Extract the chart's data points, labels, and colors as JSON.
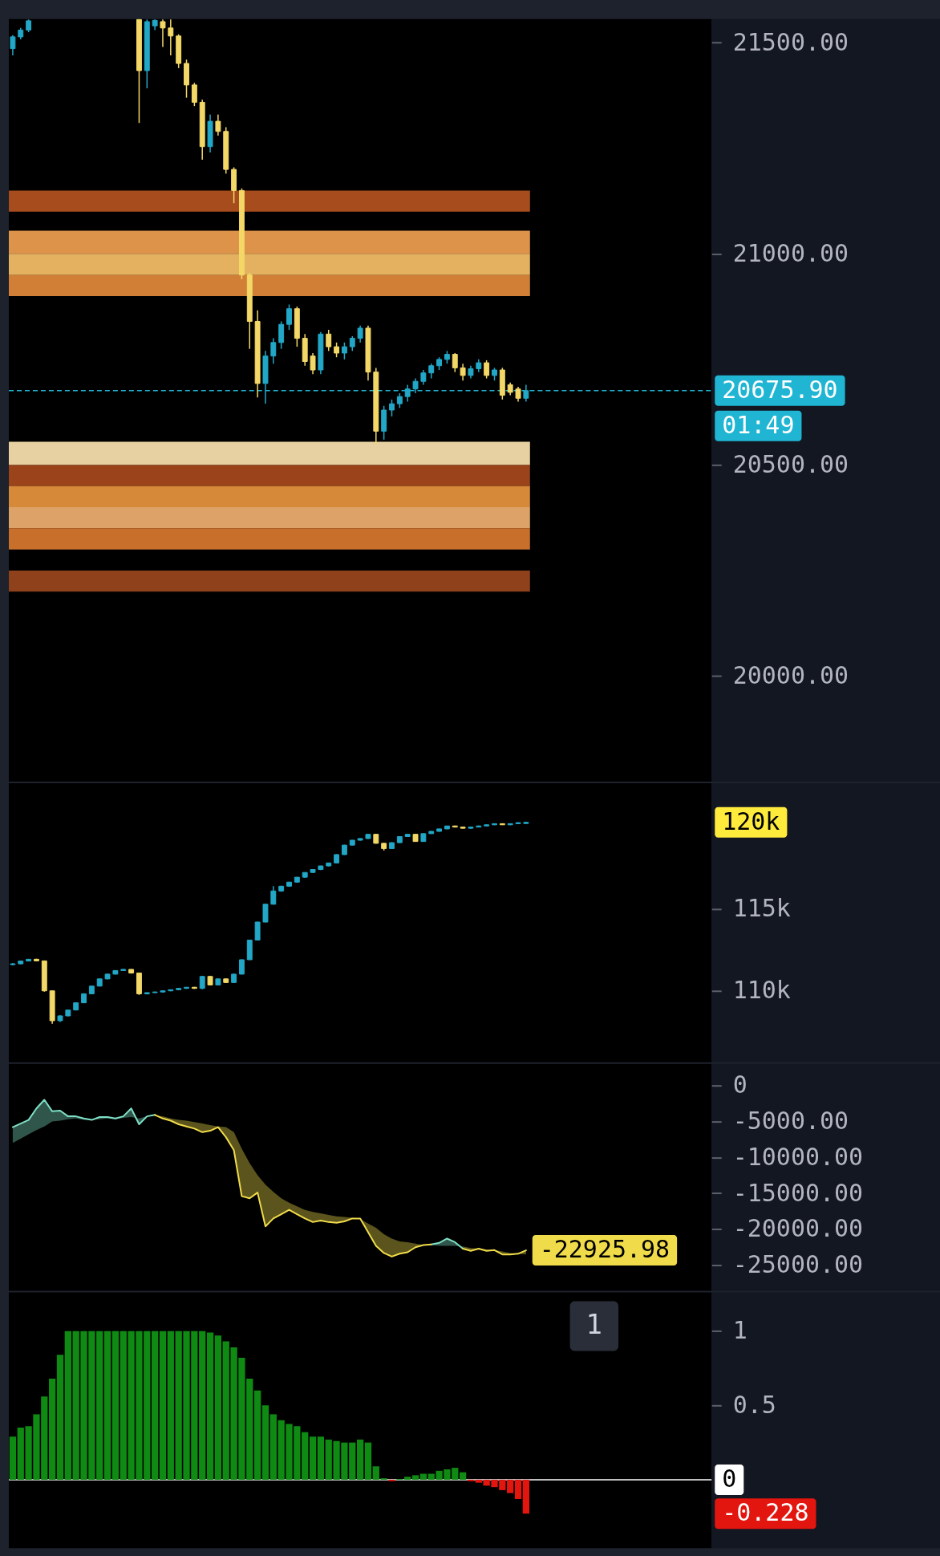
{
  "chart_data": [
    {
      "type": "candlestick",
      "categories": [
        null,
        null,
        null,
        null,
        null,
        null,
        null,
        null,
        null,
        null,
        null,
        null,
        null,
        null,
        null,
        null,
        null,
        null,
        null,
        null,
        null,
        null,
        null,
        null,
        null,
        null,
        null,
        null,
        null,
        null,
        null,
        null,
        null,
        null,
        null,
        null,
        null,
        null,
        null,
        null,
        null,
        null,
        null,
        null,
        null,
        null,
        null,
        null,
        null,
        null,
        null,
        null,
        null,
        null,
        null,
        null,
        null,
        null,
        null,
        null,
        null,
        null,
        null,
        null,
        null,
        null,
        null,
        null,
        null,
        null,
        null,
        null,
        null,
        null,
        null,
        null,
        null,
        null,
        null,
        null,
        null,
        null,
        null,
        null,
        null,
        null,
        null,
        null,
        null
      ],
      "ohlc": [
        [
          21486,
          21518,
          21470,
          21514
        ],
        [
          21514,
          21535,
          21508,
          21530
        ],
        [
          21530,
          21555,
          21525,
          21552
        ],
        null,
        null,
        null,
        null,
        null,
        null,
        null,
        null,
        null,
        null,
        null,
        null,
        null,
        [
          21555,
          21555,
          21310,
          21434
        ],
        [
          21434,
          21555,
          21392,
          21550
        ],
        [
          21540,
          21555,
          21530,
          21553
        ],
        [
          21550,
          21555,
          21490,
          21535
        ],
        [
          21535,
          21555,
          21470,
          21516
        ],
        [
          21516,
          21520,
          21440,
          21451
        ],
        [
          21451,
          21460,
          21370,
          21400
        ],
        [
          21400,
          21405,
          21350,
          21359
        ],
        [
          21359,
          21365,
          21223,
          21254
        ],
        [
          21254,
          21330,
          21240,
          21314
        ],
        [
          21314,
          21330,
          21280,
          21290
        ],
        [
          21290,
          21300,
          21190,
          21200
        ],
        [
          21200,
          21205,
          21120,
          21150
        ],
        [
          21150,
          21155,
          20940,
          20950
        ],
        [
          20950,
          20955,
          20775,
          20840
        ],
        [
          20840,
          20866,
          20660,
          20693
        ],
        [
          20693,
          20770,
          20645,
          20758
        ],
        [
          20758,
          20800,
          20740,
          20790
        ],
        [
          20790,
          20840,
          20775,
          20833
        ],
        [
          20833,
          20880,
          20820,
          20870
        ],
        [
          20870,
          20875,
          20780,
          20800
        ],
        [
          20800,
          20810,
          20735,
          20745
        ],
        [
          20758,
          20765,
          20715,
          20725
        ],
        [
          20725,
          20815,
          20715,
          20810
        ],
        [
          20810,
          20820,
          20770,
          20780
        ],
        [
          20780,
          20790,
          20755,
          20765
        ],
        [
          20765,
          20790,
          20750,
          20780
        ],
        [
          20780,
          20805,
          20770,
          20800
        ],
        [
          20800,
          20830,
          20790,
          20824
        ],
        [
          20824,
          20830,
          20700,
          20720
        ],
        [
          20720,
          20730,
          20550,
          20580
        ],
        [
          20580,
          20640,
          20560,
          20630
        ],
        [
          20630,
          20655,
          20615,
          20645
        ],
        [
          20645,
          20670,
          20635,
          20662
        ],
        [
          20662,
          20690,
          20650,
          20680
        ],
        [
          20680,
          20705,
          20670,
          20698
        ],
        [
          20698,
          20725,
          20690,
          20718
        ],
        [
          20718,
          20740,
          20705,
          20735
        ],
        [
          20735,
          20755,
          20725,
          20750
        ],
        [
          20750,
          20770,
          20740,
          20762
        ],
        [
          20762,
          20765,
          20720,
          20730
        ],
        [
          20730,
          20740,
          20700,
          20712
        ],
        [
          20712,
          20735,
          20705,
          20728
        ],
        [
          20728,
          20750,
          20720,
          20742
        ],
        [
          20742,
          20748,
          20705,
          20712
        ],
        [
          20712,
          20730,
          20700,
          20725
        ],
        [
          20725,
          20730,
          20655,
          20665
        ],
        [
          20690,
          20695,
          20665,
          20672
        ],
        [
          20680,
          20685,
          20650,
          20658
        ],
        [
          20658,
          20690,
          20650,
          20675.9
        ],
        null,
        null,
        null,
        null,
        null,
        null,
        null,
        null,
        null,
        null,
        null,
        null,
        null,
        null,
        null,
        null,
        null,
        null,
        null,
        null,
        null,
        null,
        null
      ],
      "colors": [
        "#22a7c7",
        "#22a7c7",
        "#22a7c7",
        null,
        null,
        null,
        null,
        null,
        null,
        null,
        null,
        null,
        null,
        null,
        null,
        null,
        "#f3d867",
        "#22a7c7",
        "#22a7c7",
        "#f3d867",
        "#f3d867",
        "#f3d867",
        "#f3d867",
        "#f3d867",
        "#f3d867",
        "#22a7c7",
        "#f3d867",
        "#f3d867",
        "#f3d867",
        "#f3d867",
        "#f3d867",
        "#f3d867",
        "#22a7c7",
        "#22a7c7",
        "#22a7c7",
        "#22a7c7",
        "#f3d867",
        "#f3d867",
        "#f3d867",
        "#22a7c7",
        "#f3d867",
        "#f3d867",
        "#22a7c7",
        "#22a7c7",
        "#22a7c7",
        "#f3d867",
        "#f3d867",
        "#22a7c7",
        "#22a7c7",
        "#22a7c7",
        "#22a7c7",
        "#22a7c7",
        "#22a7c7",
        "#22a7c7",
        "#22a7c7",
        "#22a7c7",
        "#f3d867",
        "#f3d867",
        "#22a7c7",
        "#22a7c7",
        "#f3d867",
        "#22a7c7",
        "#f3d867",
        "#f3d867",
        "#f3d867",
        "#22a7c7",
        null,
        null,
        null,
        null,
        null,
        null,
        null,
        null,
        null,
        null,
        null,
        null,
        null,
        null,
        null,
        null,
        null,
        null,
        null,
        null,
        null,
        null,
        null
      ],
      "ylim": [
        19750,
        21556
      ],
      "yticks": [
        {
          "value": 21500,
          "label": "21500.00"
        },
        {
          "value": 21000,
          "label": "21000.00"
        },
        {
          "value": 20500,
          "label": "20500.00"
        },
        {
          "value": 20000,
          "label": "20000.00"
        }
      ],
      "bands": [
        {
          "axis": "y",
          "from": 21100,
          "to": 21150,
          "color": "#b5531f"
        },
        {
          "axis": "y",
          "from": 21000,
          "to": 21055,
          "color": "#f0a050"
        },
        {
          "axis": "y",
          "from": 20950,
          "to": 21000,
          "color": "#f6c068"
        },
        {
          "axis": "y",
          "from": 20900,
          "to": 20950,
          "color": "#e38a3c"
        },
        {
          "axis": "y",
          "from": 20500,
          "to": 20555,
          "color": "#fbe3b0"
        },
        {
          "axis": "y",
          "from": 20450,
          "to": 20500,
          "color": "#a84a1e"
        },
        {
          "axis": "y",
          "from": 20400,
          "to": 20450,
          "color": "#e9953f"
        },
        {
          "axis": "y",
          "from": 20350,
          "to": 20400,
          "color": "#f0b070"
        },
        {
          "axis": "y",
          "from": 20300,
          "to": 20350,
          "color": "#d9782f"
        },
        {
          "axis": "y",
          "from": 20200,
          "to": 20250,
          "color": "#9a461c"
        }
      ],
      "ref_lines": [
        {
          "axis": "y",
          "value": 20675.9,
          "label": "20675.90",
          "color": "#1fb5d3",
          "line_style": "dashed"
        }
      ],
      "annotations": [
        "01:49"
      ]
    },
    {
      "type": "candlestick",
      "categories": [
        null,
        null,
        null,
        null,
        null,
        null,
        null,
        null,
        null,
        null,
        null,
        null,
        null,
        null,
        null,
        null,
        null,
        null,
        null,
        null,
        null,
        null,
        null,
        null,
        null,
        null,
        null,
        null,
        null,
        null,
        null,
        null,
        null,
        null,
        null,
        null,
        null,
        null,
        null,
        null,
        null,
        null,
        null,
        null,
        null,
        null,
        null,
        null,
        null,
        null,
        null,
        null,
        null,
        null,
        null,
        null,
        null,
        null,
        null,
        null,
        null,
        null,
        null,
        null,
        null,
        null,
        null,
        null,
        null,
        null,
        null,
        null,
        null,
        null,
        null,
        null,
        null,
        null,
        null,
        null,
        null,
        null,
        null,
        null,
        null,
        null,
        null,
        null,
        null
      ],
      "ohlc": [
        [
          111600,
          111700,
          111550,
          111650
        ],
        [
          111650,
          111850,
          111620,
          111820
        ],
        [
          111820,
          111950,
          111800,
          111930
        ],
        [
          111930,
          111960,
          111800,
          111830
        ],
        [
          111830,
          111850,
          109950,
          110000
        ],
        [
          110000,
          110020,
          107990,
          108175
        ],
        [
          108175,
          108500,
          108100,
          108470
        ],
        [
          108470,
          108850,
          108440,
          108830
        ],
        [
          108830,
          109300,
          108800,
          109270
        ],
        [
          109270,
          109850,
          109250,
          109820
        ],
        [
          109820,
          110300,
          109800,
          110290
        ],
        [
          110290,
          110750,
          110270,
          110730
        ],
        [
          110730,
          111050,
          110700,
          111020
        ],
        [
          111020,
          111260,
          111000,
          111240
        ],
        [
          111240,
          111330,
          111220,
          111310
        ],
        [
          111310,
          111330,
          111050,
          111090
        ],
        [
          111090,
          111100,
          109750,
          109820
        ],
        [
          109820,
          109900,
          109780,
          109890
        ],
        [
          109890,
          109950,
          109860,
          109930
        ],
        [
          109930,
          110020,
          109900,
          110000
        ],
        [
          110000,
          110090,
          109970,
          110070
        ],
        [
          110070,
          110160,
          110040,
          110150
        ],
        [
          110150,
          110230,
          110120,
          110220
        ],
        [
          110220,
          110240,
          110120,
          110150
        ],
        [
          110150,
          110900,
          110100,
          110880
        ],
        [
          110880,
          110900,
          110330,
          110360
        ],
        [
          110360,
          110750,
          110340,
          110730
        ],
        [
          110730,
          110760,
          110480,
          110510
        ],
        [
          110510,
          111050,
          110490,
          111020
        ],
        [
          111020,
          111920,
          111000,
          111900
        ],
        [
          111900,
          113120,
          111880,
          113100
        ],
        [
          113100,
          114220,
          113080,
          114200
        ],
        [
          114200,
          115320,
          114180,
          115290
        ],
        [
          115290,
          116400,
          115270,
          116100
        ],
        [
          116100,
          116420,
          116050,
          116390
        ],
        [
          116390,
          116660,
          116350,
          116640
        ],
        [
          116640,
          116950,
          116600,
          116940
        ],
        [
          116940,
          117240,
          116900,
          117230
        ],
        [
          117230,
          117420,
          117200,
          117410
        ],
        [
          117410,
          117640,
          117380,
          117630
        ],
        [
          117630,
          117830,
          117600,
          117810
        ],
        [
          117810,
          118340,
          117790,
          118320
        ],
        [
          118320,
          118920,
          118300,
          118900
        ],
        [
          118900,
          119210,
          118880,
          119200
        ],
        [
          119200,
          119320,
          119180,
          119300
        ],
        [
          119300,
          119580,
          119280,
          119560
        ],
        [
          119560,
          119580,
          118990,
          119010
        ],
        [
          119010,
          119030,
          118570,
          118690
        ],
        [
          118690,
          119070,
          118670,
          119050
        ],
        [
          119050,
          119430,
          119030,
          119420
        ],
        [
          119420,
          119580,
          119400,
          119560
        ],
        [
          119560,
          119580,
          119100,
          119120
        ],
        [
          119120,
          119620,
          119100,
          119600
        ],
        [
          119600,
          119760,
          119580,
          119740
        ],
        [
          119740,
          119900,
          119720,
          119890
        ],
        [
          119890,
          120080,
          119870,
          120070
        ],
        [
          120070,
          120090,
          119980,
          120000
        ],
        [
          120000,
          120020,
          119910,
          119930
        ],
        [
          119930,
          120010,
          119900,
          120000
        ],
        [
          120000,
          120090,
          119980,
          120070
        ],
        [
          120070,
          120160,
          120050,
          120140
        ],
        [
          120140,
          120230,
          120120,
          120210
        ],
        [
          120210,
          120230,
          120130,
          120140
        ],
        [
          120140,
          120230,
          120120,
          120210
        ],
        [
          120210,
          120290,
          120190,
          120270
        ],
        [
          120220,
          120310,
          120200,
          120290
        ],
        null,
        null,
        null,
        null,
        null,
        null,
        null,
        null,
        null,
        null,
        null,
        null,
        null,
        null,
        null,
        null,
        null,
        null,
        null,
        null,
        null,
        null,
        null
      ],
      "colors": [
        "#22a7c7",
        "#22a7c7",
        "#22a7c7",
        "#f3d867",
        "#f3d867",
        "#f3d867",
        "#22a7c7",
        "#22a7c7",
        "#22a7c7",
        "#22a7c7",
        "#22a7c7",
        "#22a7c7",
        "#22a7c7",
        "#22a7c7",
        "#22a7c7",
        "#f3d867",
        "#f3d867",
        "#22a7c7",
        "#22a7c7",
        "#22a7c7",
        "#22a7c7",
        "#22a7c7",
        "#22a7c7",
        "#f3d867",
        "#22a7c7",
        "#f3d867",
        "#22a7c7",
        "#f3d867",
        "#22a7c7",
        "#22a7c7",
        "#22a7c7",
        "#22a7c7",
        "#22a7c7",
        "#22a7c7",
        "#22a7c7",
        "#22a7c7",
        "#22a7c7",
        "#22a7c7",
        "#22a7c7",
        "#22a7c7",
        "#22a7c7",
        "#22a7c7",
        "#22a7c7",
        "#22a7c7",
        "#22a7c7",
        "#22a7c7",
        "#f3d867",
        "#f3d867",
        "#22a7c7",
        "#22a7c7",
        "#22a7c7",
        "#f3d867",
        "#22a7c7",
        "#22a7c7",
        "#22a7c7",
        "#22a7c7",
        "#f3d867",
        "#f3d867",
        "#22a7c7",
        "#22a7c7",
        "#22a7c7",
        "#22a7c7",
        "#f3d867",
        "#22a7c7",
        "#22a7c7",
        "#22a7c7",
        null,
        null,
        null,
        null,
        null,
        null,
        null,
        null,
        null,
        null,
        null,
        null,
        null,
        null,
        null,
        null,
        null,
        null,
        null,
        null,
        null,
        null,
        null
      ],
      "ylim": [
        105640,
        122680
      ],
      "yticks": [
        {
          "value": 110000,
          "label": "110k"
        },
        {
          "value": 115000,
          "label": "115k"
        }
      ],
      "annotations": [
        "120k"
      ]
    },
    {
      "type": "line",
      "categories": [
        null,
        null,
        null,
        null,
        null,
        null,
        null,
        null,
        null,
        null,
        null,
        null,
        null,
        null,
        null,
        null,
        null,
        null,
        null,
        null,
        null,
        null,
        null,
        null,
        null,
        null,
        null,
        null,
        null,
        null,
        null,
        null,
        null,
        null,
        null,
        null,
        null,
        null,
        null,
        null,
        null,
        null,
        null,
        null,
        null,
        null,
        null,
        null,
        null,
        null,
        null,
        null,
        null,
        null,
        null,
        null,
        null,
        null,
        null,
        null,
        null,
        null,
        null,
        null,
        null,
        null,
        null,
        null,
        null,
        null,
        null,
        null,
        null,
        null,
        null,
        null,
        null,
        null,
        null,
        null,
        null,
        null,
        null,
        null,
        null,
        null,
        null,
        null,
        null
      ],
      "series": [
        {
          "color": "#7ee0c6",
          "values": [
            -5800,
            -5300,
            -4800,
            -3200,
            -2000,
            -3600,
            -3500,
            -4300,
            -4300,
            -4600,
            -4800,
            -4400,
            -4400,
            -4600,
            -4300,
            -3200,
            -5400,
            -4300,
            -4100,
            null,
            null,
            null,
            null,
            null,
            null,
            null,
            null,
            null,
            null,
            null,
            null,
            null,
            null,
            null,
            null,
            null,
            null,
            null,
            null,
            null,
            null,
            null,
            null,
            null,
            null,
            null,
            null,
            null,
            null,
            null,
            null,
            null,
            null,
            -22100,
            -21900,
            -21300,
            -21800,
            -22700,
            null,
            null,
            null,
            null,
            null,
            null,
            null,
            null,
            null,
            null,
            null,
            null,
            null,
            null,
            null,
            null,
            null,
            null,
            null,
            null,
            null,
            null,
            null,
            null,
            null,
            null,
            null,
            null,
            null,
            null,
            null
          ],
          "lower": [
            -8000,
            -7400,
            -6800,
            -6200,
            -5700,
            -5000,
            -4900,
            -4700,
            -4600,
            -4800,
            -4800,
            -4700,
            -4600,
            -4700,
            -4500,
            -4400,
            -4600,
            -4300,
            -4200,
            null,
            null,
            null,
            null,
            null,
            null,
            null,
            null,
            null,
            null,
            null,
            null,
            null,
            null,
            null,
            null,
            null,
            null,
            null,
            null,
            null,
            null,
            null,
            null,
            null,
            null,
            null,
            null,
            null,
            null,
            null,
            null,
            null,
            null,
            -22200,
            -22300,
            -22300,
            -22300,
            -22400,
            null,
            null,
            null,
            null,
            null,
            null,
            null,
            null,
            null,
            null,
            null,
            null,
            null,
            null,
            null,
            null,
            null,
            null,
            null,
            null,
            null,
            null,
            null,
            null,
            null,
            null,
            null,
            null,
            null,
            null,
            null
          ],
          "upper": [
            -5800,
            -5300,
            -4800,
            -3200,
            -2000,
            -3600,
            -3500,
            -4300,
            -4300,
            -4600,
            -4800,
            -4400,
            -4400,
            -4600,
            -4300,
            -3200,
            -5400,
            -4300,
            -4100,
            null,
            null,
            null,
            null,
            null,
            null,
            null,
            null,
            null,
            null,
            null,
            null,
            null,
            null,
            null,
            null,
            null,
            null,
            null,
            null,
            null,
            null,
            null,
            null,
            null,
            null,
            null,
            null,
            null,
            null,
            null,
            null,
            null,
            null,
            -22100,
            -21900,
            -21300,
            -21800,
            -22700,
            null,
            null,
            null,
            null,
            null,
            null,
            null,
            null,
            null,
            null,
            null,
            null,
            null,
            null,
            null,
            null,
            null,
            null,
            null,
            null,
            null,
            null,
            null,
            null,
            null,
            null,
            null,
            null,
            null,
            null,
            null
          ]
        },
        {
          "color": "#f0dc4a",
          "values": [
            null,
            null,
            null,
            null,
            null,
            null,
            null,
            null,
            null,
            null,
            null,
            null,
            null,
            null,
            null,
            null,
            null,
            null,
            -4100,
            -4600,
            -4900,
            -5400,
            -5700,
            -6000,
            -6500,
            -6300,
            -5800,
            -7200,
            -9000,
            -15400,
            -15700,
            -14900,
            -19600,
            -18500,
            -17900,
            -17300,
            -17900,
            -18500,
            -19000,
            -18800,
            -19000,
            -19100,
            -18900,
            -18500,
            -18500,
            -20400,
            -22300,
            -23300,
            -23800,
            -23400,
            -23200,
            -22500,
            -22200,
            -22100,
            null,
            null,
            null,
            -22700,
            -23000,
            -22700,
            -23000,
            -22900,
            -23500,
            -23500,
            -23400,
            -22925.98,
            null,
            null,
            null,
            null,
            null,
            null,
            null,
            null,
            null,
            null,
            null,
            null,
            null,
            null,
            null,
            null,
            null,
            null,
            null,
            null,
            null,
            null,
            null
          ],
          "lower": [
            null,
            null,
            null,
            null,
            null,
            null,
            null,
            null,
            null,
            null,
            null,
            null,
            null,
            null,
            null,
            null,
            null,
            null,
            -4100,
            -4600,
            -4900,
            -5400,
            -5700,
            -6000,
            -6500,
            -6300,
            -5800,
            -7200,
            -9000,
            -15400,
            -15700,
            -14900,
            -19600,
            -18500,
            -17900,
            -17300,
            -17900,
            -18500,
            -19000,
            -18800,
            -19000,
            -19100,
            -18900,
            -18500,
            -18500,
            -20400,
            -22300,
            -23300,
            -23800,
            -23400,
            -23200,
            -22500,
            -22200,
            -22100,
            null,
            null,
            null,
            -22700,
            -23000,
            -22700,
            -23000,
            -22900,
            -23500,
            -23500,
            -23400,
            -22925.98,
            null,
            null,
            null,
            null,
            null,
            null,
            null,
            null,
            null,
            null,
            null,
            null,
            null,
            null,
            null,
            null,
            null,
            null,
            null,
            null,
            null,
            null,
            null
          ],
          "upper": [
            null,
            null,
            null,
            null,
            null,
            null,
            null,
            null,
            null,
            null,
            null,
            null,
            null,
            null,
            null,
            null,
            null,
            null,
            -4200,
            -4300,
            -4600,
            -4800,
            -4900,
            -5100,
            -5300,
            -5500,
            -5700,
            -5800,
            -6500,
            -8800,
            -10800,
            -12500,
            -13800,
            -14800,
            -15700,
            -16300,
            -16800,
            -17300,
            -17600,
            -17800,
            -18000,
            -18200,
            -18300,
            -18400,
            -18600,
            -19200,
            -19800,
            -20700,
            -21300,
            -21700,
            -21800,
            -22000,
            -22200,
            -22200,
            null,
            null,
            null,
            -22400,
            -22600,
            -22700,
            -22800,
            -22900,
            -23100,
            -23300,
            -23400,
            -23500,
            null,
            null,
            null,
            null,
            null,
            null,
            null,
            null,
            null,
            null,
            null,
            null,
            null,
            null,
            null,
            null,
            null,
            null,
            null,
            null,
            null,
            null,
            null
          ]
        }
      ],
      "ylim": [
        -28550,
        3000
      ],
      "yticks": [
        {
          "value": 0,
          "label": "0"
        },
        {
          "value": -5000,
          "label": "-5000.00"
        },
        {
          "value": -10000,
          "label": "-10000.00"
        },
        {
          "value": -15000,
          "label": "-15000.00"
        },
        {
          "value": -20000,
          "label": "-20000.00"
        },
        {
          "value": -25000,
          "label": "-25000.00"
        }
      ],
      "annotations": [
        "-22925.98"
      ]
    },
    {
      "type": "bar",
      "categories": [
        null,
        null,
        null,
        null,
        null,
        null,
        null,
        null,
        null,
        null,
        null,
        null,
        null,
        null,
        null,
        null,
        null,
        null,
        null,
        null,
        null,
        null,
        null,
        null,
        null,
        null,
        null,
        null,
        null,
        null,
        null,
        null,
        null,
        null,
        null,
        null,
        null,
        null,
        null,
        null,
        null,
        null,
        null,
        null,
        null,
        null,
        null,
        null,
        null,
        null,
        null,
        null,
        null,
        null,
        null,
        null,
        null,
        null,
        null,
        null,
        null,
        null,
        null,
        null,
        null,
        null,
        null,
        null,
        null,
        null,
        null,
        null,
        null,
        null,
        null,
        null,
        null,
        null,
        null,
        null,
        null,
        null,
        null,
        null,
        null,
        null,
        null,
        null,
        null
      ],
      "values": [
        0.29,
        0.35,
        0.36,
        0.44,
        0.56,
        0.68,
        0.84,
        1,
        1,
        1,
        1,
        1,
        1,
        1,
        1,
        1,
        1,
        1,
        1,
        1,
        1,
        1,
        1,
        1,
        1,
        0.99,
        0.97,
        0.93,
        0.89,
        0.82,
        0.68,
        0.6,
        0.5,
        0.44,
        0.4,
        0.375,
        0.36,
        0.32,
        0.29,
        0.29,
        0.27,
        0.26,
        0.25,
        0.25,
        0.27,
        0.25,
        0.09,
        0.01,
        -0.01,
        0.005,
        0.02,
        0.03,
        0.04,
        0.04,
        0.06,
        0.07,
        0.08,
        0.05,
        -0.01,
        -0.02,
        -0.04,
        -0.05,
        -0.07,
        -0.09,
        -0.13,
        -0.228,
        null,
        null,
        null,
        null,
        null,
        null,
        null,
        null,
        null,
        null,
        null,
        null,
        null,
        null,
        null,
        null,
        null,
        null,
        null,
        null,
        null,
        null,
        null
      ],
      "colors": [
        "#0f8a13",
        "#0f8a13",
        "#0f8a13",
        "#0f8a13",
        "#0f8a13",
        "#0f8a13",
        "#0f8a13",
        "#0f8a13",
        "#0f8a13",
        "#0f8a13",
        "#0f8a13",
        "#0f8a13",
        "#0f8a13",
        "#0f8a13",
        "#0f8a13",
        "#0f8a13",
        "#0f8a13",
        "#0f8a13",
        "#0f8a13",
        "#0f8a13",
        "#0f8a13",
        "#0f8a13",
        "#0f8a13",
        "#0f8a13",
        "#0f8a13",
        "#0f8a13",
        "#0f8a13",
        "#0f8a13",
        "#0f8a13",
        "#0f8a13",
        "#0f8a13",
        "#0f8a13",
        "#0f8a13",
        "#0f8a13",
        "#0f8a13",
        "#0f8a13",
        "#0f8a13",
        "#0f8a13",
        "#0f8a13",
        "#0f8a13",
        "#0f8a13",
        "#0f8a13",
        "#0f8a13",
        "#0f8a13",
        "#0f8a13",
        "#0f8a13",
        "#0f8a13",
        "#0f8a13",
        "#e3150f",
        "#0f8a13",
        "#0f8a13",
        "#0f8a13",
        "#0f8a13",
        "#0f8a13",
        "#0f8a13",
        "#0f8a13",
        "#0f8a13",
        "#0f8a13",
        "#e3150f",
        "#e3150f",
        "#e3150f",
        "#e3150f",
        "#e3150f",
        "#e3150f",
        "#e3150f",
        "#e3150f",
        null,
        null,
        null,
        null,
        null,
        null,
        null,
        null,
        null,
        null,
        null,
        null,
        null,
        null,
        null,
        null,
        null,
        null,
        null,
        null,
        null,
        null,
        null
      ],
      "ylim": [
        -0.46,
        1.26
      ],
      "yticks": [
        1,
        0.5
      ],
      "ref_lines": [
        {
          "axis": "y",
          "value": 0,
          "label": "0",
          "color": "#ffffff"
        }
      ],
      "annotations": [
        "-0.228",
        "1"
      ]
    }
  ]
}
